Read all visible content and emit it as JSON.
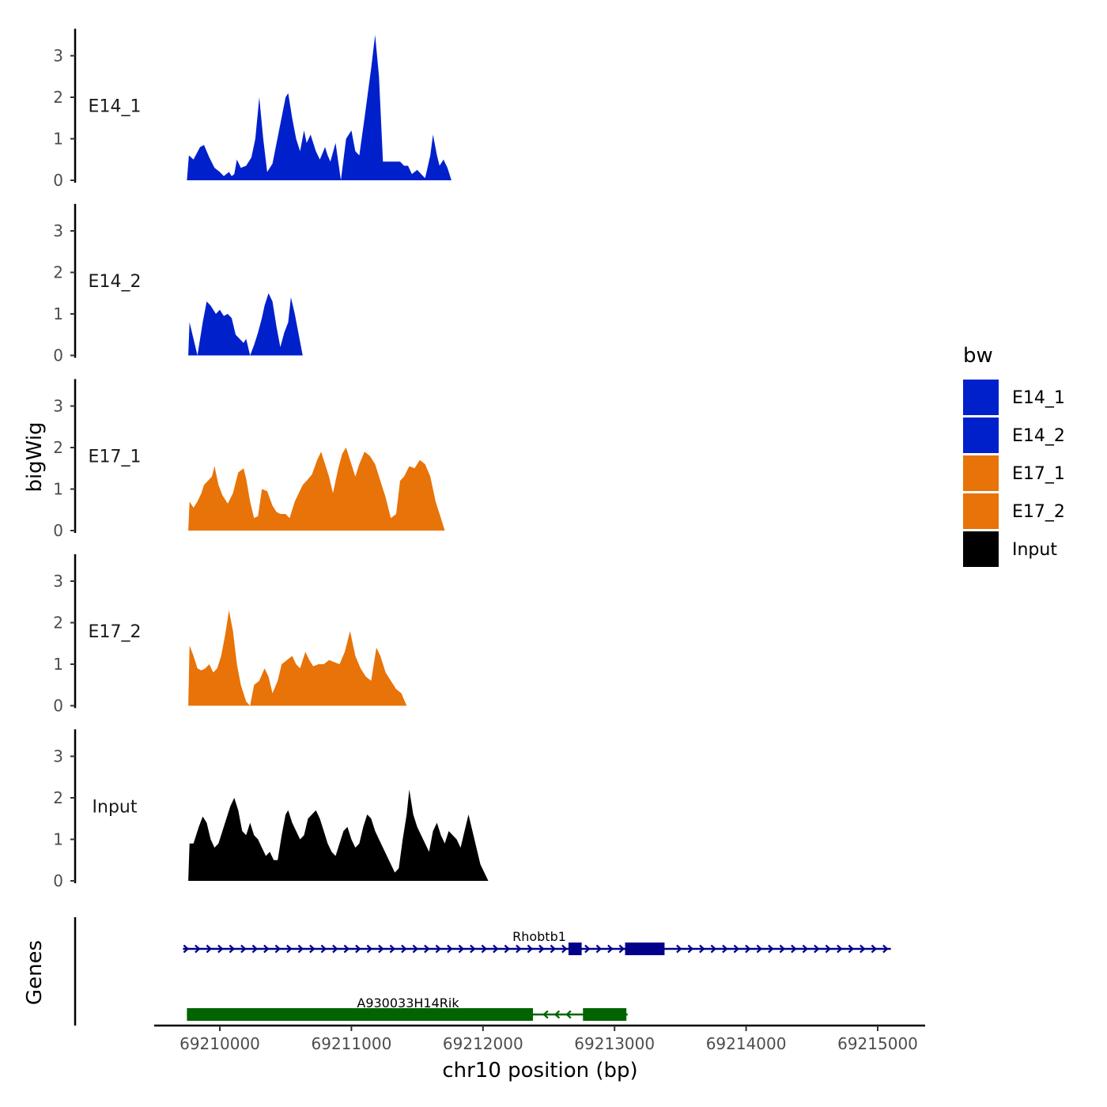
{
  "chart_data": {
    "type": "area",
    "ylabel": "bigWig",
    "genes_label": "Genes",
    "xlabel": "chr10 position (bp)",
    "xlim": [
      69209450,
      69215300
    ],
    "ylim": [
      0,
      3.6
    ],
    "yticks": [
      0,
      1,
      2,
      3
    ],
    "ytick_labels": [
      "0",
      "1",
      "2",
      "3"
    ],
    "xticks": [
      69210000,
      69211000,
      69212000,
      69213000,
      69214000,
      69215000
    ],
    "xtick_labels": [
      "69210000",
      "69211000",
      "69212000",
      "69213000",
      "69214000",
      "69215000"
    ],
    "colors": {
      "E14_1": "#0020CC",
      "E14_2": "#0020CC",
      "E17_1": "#E87308",
      "E17_2": "#E87308",
      "Input": "#000000",
      "gene_plus": "#00008B",
      "gene_minus": "#006400"
    },
    "legend": {
      "title": "bw",
      "entries": [
        "E14_1",
        "E14_2",
        "E17_1",
        "E17_2",
        "Input"
      ]
    },
    "series": [
      {
        "name": "E14_1",
        "label": "E14_1",
        "points": [
          [
            69209750,
            0
          ],
          [
            69209765,
            0.6
          ],
          [
            69209800,
            0.5
          ],
          [
            69209850,
            0.8
          ],
          [
            69209880,
            0.85
          ],
          [
            69209920,
            0.55
          ],
          [
            69209960,
            0.3
          ],
          [
            69210000,
            0.2
          ],
          [
            69210030,
            0.1
          ],
          [
            69210070,
            0.2
          ],
          [
            69210090,
            0.1
          ],
          [
            69210110,
            0.15
          ],
          [
            69210130,
            0.5
          ],
          [
            69210160,
            0.3
          ],
          [
            69210200,
            0.35
          ],
          [
            69210240,
            0.55
          ],
          [
            69210270,
            1.0
          ],
          [
            69210300,
            2.0
          ],
          [
            69210330,
            1.0
          ],
          [
            69210360,
            0.2
          ],
          [
            69210400,
            0.4
          ],
          [
            69210450,
            1.2
          ],
          [
            69210500,
            2.0
          ],
          [
            69210520,
            2.1
          ],
          [
            69210550,
            1.5
          ],
          [
            69210580,
            1.0
          ],
          [
            69210610,
            0.7
          ],
          [
            69210640,
            1.2
          ],
          [
            69210660,
            0.9
          ],
          [
            69210690,
            1.1
          ],
          [
            69210730,
            0.7
          ],
          [
            69210760,
            0.5
          ],
          [
            69210800,
            0.8
          ],
          [
            69210820,
            0.6
          ],
          [
            69210840,
            0.45
          ],
          [
            69210880,
            0.9
          ],
          [
            69210920,
            0.0
          ],
          [
            69210960,
            1.0
          ],
          [
            69211000,
            1.2
          ],
          [
            69211030,
            0.7
          ],
          [
            69211060,
            0.6
          ],
          [
            69211100,
            1.5
          ],
          [
            69211150,
            2.7
          ],
          [
            69211180,
            3.5
          ],
          [
            69211210,
            2.5
          ],
          [
            69211240,
            0.45
          ],
          [
            69211280,
            0.45
          ],
          [
            69211330,
            0.45
          ],
          [
            69211370,
            0.45
          ],
          [
            69211400,
            0.35
          ],
          [
            69211430,
            0.35
          ],
          [
            69211460,
            0.15
          ],
          [
            69211500,
            0.25
          ],
          [
            69211530,
            0.15
          ],
          [
            69211560,
            0.05
          ],
          [
            69211600,
            0.6
          ],
          [
            69211620,
            1.1
          ],
          [
            69211650,
            0.6
          ],
          [
            69211670,
            0.35
          ],
          [
            69211700,
            0.5
          ],
          [
            69211730,
            0.3
          ],
          [
            69211760,
            0.0
          ]
        ]
      },
      {
        "name": "E14_2",
        "label": "E14_2",
        "points": [
          [
            69209760,
            0
          ],
          [
            69209770,
            0.8
          ],
          [
            69209800,
            0.4
          ],
          [
            69209830,
            0.0
          ],
          [
            69209870,
            0.8
          ],
          [
            69209900,
            1.3
          ],
          [
            69209930,
            1.2
          ],
          [
            69209970,
            1.0
          ],
          [
            69210000,
            1.1
          ],
          [
            69210030,
            0.95
          ],
          [
            69210060,
            1.0
          ],
          [
            69210090,
            0.9
          ],
          [
            69210120,
            0.5
          ],
          [
            69210150,
            0.4
          ],
          [
            69210180,
            0.3
          ],
          [
            69210200,
            0.4
          ],
          [
            69210230,
            0.0
          ],
          [
            69210260,
            0.25
          ],
          [
            69210290,
            0.55
          ],
          [
            69210320,
            0.9
          ],
          [
            69210340,
            1.2
          ],
          [
            69210370,
            1.5
          ],
          [
            69210400,
            1.3
          ],
          [
            69210430,
            0.7
          ],
          [
            69210460,
            0.2
          ],
          [
            69210490,
            0.55
          ],
          [
            69210520,
            0.8
          ],
          [
            69210540,
            1.4
          ],
          [
            69210570,
            1.0
          ],
          [
            69210600,
            0.5
          ],
          [
            69210630,
            0.0
          ],
          [
            69210670,
            0.0
          ]
        ]
      },
      {
        "name": "E17_1",
        "label": "E17_1",
        "points": [
          [
            69209760,
            0
          ],
          [
            69209770,
            0.7
          ],
          [
            69209800,
            0.55
          ],
          [
            69209830,
            0.7
          ],
          [
            69209860,
            0.9
          ],
          [
            69209880,
            1.1
          ],
          [
            69209910,
            1.2
          ],
          [
            69209940,
            1.3
          ],
          [
            69209960,
            1.55
          ],
          [
            69209990,
            1.1
          ],
          [
            69210020,
            0.85
          ],
          [
            69210060,
            0.65
          ],
          [
            69210100,
            0.9
          ],
          [
            69210140,
            1.4
          ],
          [
            69210180,
            1.5
          ],
          [
            69210200,
            1.25
          ],
          [
            69210230,
            0.7
          ],
          [
            69210260,
            0.3
          ],
          [
            69210290,
            0.35
          ],
          [
            69210320,
            1.0
          ],
          [
            69210360,
            0.95
          ],
          [
            69210400,
            0.6
          ],
          [
            69210430,
            0.45
          ],
          [
            69210460,
            0.4
          ],
          [
            69210500,
            0.4
          ],
          [
            69210530,
            0.3
          ],
          [
            69210570,
            0.7
          ],
          [
            69210600,
            0.9
          ],
          [
            69210630,
            1.1
          ],
          [
            69210660,
            1.2
          ],
          [
            69210700,
            1.35
          ],
          [
            69210740,
            1.7
          ],
          [
            69210770,
            1.9
          ],
          [
            69210800,
            1.6
          ],
          [
            69210830,
            1.3
          ],
          [
            69210860,
            0.9
          ],
          [
            69210900,
            1.5
          ],
          [
            69210930,
            1.85
          ],
          [
            69210960,
            2.0
          ],
          [
            69210990,
            1.7
          ],
          [
            69211030,
            1.3
          ],
          [
            69211060,
            1.6
          ],
          [
            69211100,
            1.9
          ],
          [
            69211140,
            1.8
          ],
          [
            69211180,
            1.6
          ],
          [
            69211220,
            1.2
          ],
          [
            69211260,
            0.8
          ],
          [
            69211300,
            0.3
          ],
          [
            69211340,
            0.4
          ],
          [
            69211370,
            1.2
          ],
          [
            69211400,
            1.3
          ],
          [
            69211440,
            1.55
          ],
          [
            69211480,
            1.5
          ],
          [
            69211520,
            1.7
          ],
          [
            69211560,
            1.6
          ],
          [
            69211600,
            1.3
          ],
          [
            69211640,
            0.7
          ],
          [
            69211680,
            0.3
          ],
          [
            69211710,
            0.0
          ]
        ]
      },
      {
        "name": "E17_2",
        "label": "E17_2",
        "points": [
          [
            69209760,
            0
          ],
          [
            69209770,
            1.45
          ],
          [
            69209800,
            1.2
          ],
          [
            69209830,
            0.9
          ],
          [
            69209860,
            0.85
          ],
          [
            69209890,
            0.9
          ],
          [
            69209920,
            1.0
          ],
          [
            69209950,
            0.8
          ],
          [
            69209980,
            0.9
          ],
          [
            69210010,
            1.2
          ],
          [
            69210040,
            1.7
          ],
          [
            69210070,
            2.3
          ],
          [
            69210100,
            1.8
          ],
          [
            69210130,
            1.0
          ],
          [
            69210160,
            0.5
          ],
          [
            69210200,
            0.1
          ],
          [
            69210230,
            0.0
          ],
          [
            69210260,
            0.5
          ],
          [
            69210300,
            0.6
          ],
          [
            69210340,
            0.9
          ],
          [
            69210370,
            0.7
          ],
          [
            69210400,
            0.3
          ],
          [
            69210440,
            0.6
          ],
          [
            69210470,
            1.0
          ],
          [
            69210510,
            1.1
          ],
          [
            69210550,
            1.2
          ],
          [
            69210580,
            1.0
          ],
          [
            69210610,
            0.9
          ],
          [
            69210650,
            1.3
          ],
          [
            69210680,
            1.1
          ],
          [
            69210710,
            0.95
          ],
          [
            69210750,
            1.0
          ],
          [
            69210790,
            1.0
          ],
          [
            69210830,
            1.1
          ],
          [
            69210870,
            1.05
          ],
          [
            69210910,
            1.0
          ],
          [
            69210950,
            1.3
          ],
          [
            69210990,
            1.8
          ],
          [
            69211030,
            1.2
          ],
          [
            69211070,
            0.9
          ],
          [
            69211110,
            0.7
          ],
          [
            69211150,
            0.6
          ],
          [
            69211190,
            1.4
          ],
          [
            69211220,
            1.2
          ],
          [
            69211260,
            0.8
          ],
          [
            69211300,
            0.6
          ],
          [
            69211340,
            0.4
          ],
          [
            69211380,
            0.3
          ],
          [
            69211420,
            0.0
          ]
        ]
      },
      {
        "name": "Input",
        "label": "Input",
        "points": [
          [
            69209760,
            0
          ],
          [
            69209770,
            0.9
          ],
          [
            69209800,
            0.9
          ],
          [
            69209840,
            1.3
          ],
          [
            69209870,
            1.55
          ],
          [
            69209900,
            1.4
          ],
          [
            69209930,
            1.0
          ],
          [
            69209960,
            0.8
          ],
          [
            69209990,
            0.9
          ],
          [
            69210020,
            1.2
          ],
          [
            69210050,
            1.5
          ],
          [
            69210080,
            1.8
          ],
          [
            69210110,
            2.0
          ],
          [
            69210140,
            1.7
          ],
          [
            69210170,
            1.2
          ],
          [
            69210200,
            1.1
          ],
          [
            69210230,
            1.4
          ],
          [
            69210260,
            1.1
          ],
          [
            69210290,
            1.0
          ],
          [
            69210320,
            0.8
          ],
          [
            69210350,
            0.6
          ],
          [
            69210380,
            0.7
          ],
          [
            69210410,
            0.5
          ],
          [
            69210440,
            0.5
          ],
          [
            69210470,
            1.1
          ],
          [
            69210500,
            1.6
          ],
          [
            69210520,
            1.7
          ],
          [
            69210550,
            1.4
          ],
          [
            69210580,
            1.2
          ],
          [
            69210610,
            1.0
          ],
          [
            69210640,
            1.1
          ],
          [
            69210670,
            1.5
          ],
          [
            69210700,
            1.6
          ],
          [
            69210730,
            1.7
          ],
          [
            69210760,
            1.5
          ],
          [
            69210790,
            1.2
          ],
          [
            69210820,
            0.9
          ],
          [
            69210850,
            0.7
          ],
          [
            69210880,
            0.6
          ],
          [
            69210910,
            0.9
          ],
          [
            69210940,
            1.2
          ],
          [
            69210970,
            1.3
          ],
          [
            69211000,
            1.0
          ],
          [
            69211030,
            0.8
          ],
          [
            69211060,
            0.9
          ],
          [
            69211090,
            1.3
          ],
          [
            69211120,
            1.6
          ],
          [
            69211150,
            1.5
          ],
          [
            69211180,
            1.2
          ],
          [
            69211210,
            1.0
          ],
          [
            69211240,
            0.8
          ],
          [
            69211270,
            0.6
          ],
          [
            69211300,
            0.4
          ],
          [
            69211330,
            0.2
          ],
          [
            69211360,
            0.3
          ],
          [
            69211390,
            1.0
          ],
          [
            69211420,
            1.6
          ],
          [
            69211440,
            2.2
          ],
          [
            69211470,
            1.6
          ],
          [
            69211500,
            1.3
          ],
          [
            69211530,
            1.1
          ],
          [
            69211560,
            0.9
          ],
          [
            69211590,
            0.7
          ],
          [
            69211620,
            1.2
          ],
          [
            69211650,
            1.4
          ],
          [
            69211680,
            1.1
          ],
          [
            69211710,
            0.9
          ],
          [
            69211740,
            1.2
          ],
          [
            69211770,
            1.1
          ],
          [
            69211800,
            1.0
          ],
          [
            69211830,
            0.8
          ],
          [
            69211860,
            1.2
          ],
          [
            69211890,
            1.6
          ],
          [
            69211920,
            1.2
          ],
          [
            69211950,
            0.8
          ],
          [
            69211980,
            0.4
          ],
          [
            69212010,
            0.2
          ],
          [
            69212040,
            0.0
          ]
        ]
      }
    ],
    "genes": [
      {
        "name": "Rhobtb1",
        "strand": "+",
        "row": 0,
        "start": 69209720,
        "end": 69215100,
        "exons": [
          [
            69212650,
            69212750
          ],
          [
            69213080,
            69213380
          ]
        ]
      },
      {
        "name": "A930033H14Rik",
        "strand": "-",
        "row": 1,
        "start": 69209750,
        "end": 69213100,
        "exons": [
          [
            69209750,
            69212380
          ],
          [
            69212760,
            69213090
          ]
        ]
      }
    ]
  }
}
